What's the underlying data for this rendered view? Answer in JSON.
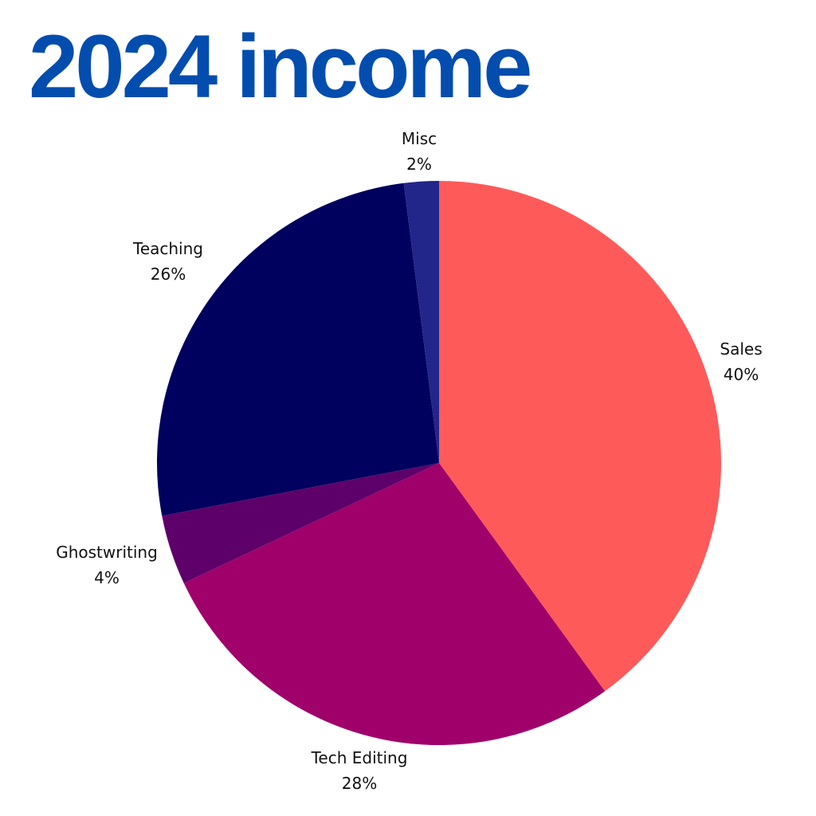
{
  "title": "2024 income",
  "chart_data": {
    "type": "pie",
    "title": "2024 income",
    "start": "top",
    "direction": "clockwise",
    "slices": [
      {
        "label": "Sales",
        "value": 40,
        "display": "40%",
        "color": "#FF5A5A"
      },
      {
        "label": "Tech Editing",
        "value": 28,
        "display": "28%",
        "color": "#A0006A"
      },
      {
        "label": "Ghostwriting",
        "value": 4,
        "display": "4%",
        "color": "#5E006A"
      },
      {
        "label": "Teaching",
        "value": 26,
        "display": "26%",
        "color": "#00005E"
      },
      {
        "label": "Misc",
        "value": 2,
        "display": "2%",
        "color": "#22268A"
      }
    ]
  }
}
